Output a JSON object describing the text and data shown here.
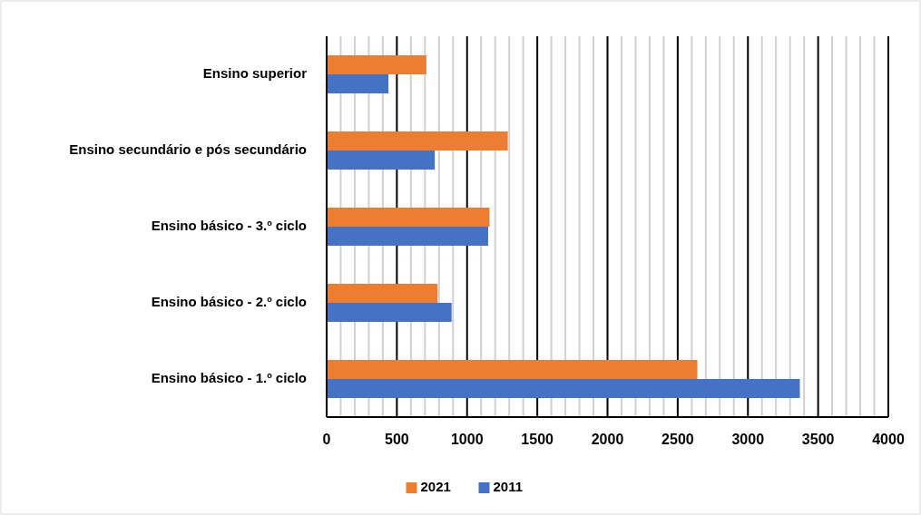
{
  "chart_data": {
    "type": "bar",
    "orientation": "horizontal",
    "categories": [
      "Ensino superior",
      "Ensino secundário e pós secundário",
      "Ensino básico - 3.º ciclo",
      "Ensino básico - 2.º ciclo",
      "Ensino básico - 1.º ciclo"
    ],
    "series": [
      {
        "name": "2021",
        "color": "#ed7d31",
        "values": [
          710,
          1290,
          1160,
          790,
          2640
        ]
      },
      {
        "name": "2011",
        "color": "#4472c4",
        "values": [
          440,
          770,
          1150,
          890,
          3370
        ]
      }
    ],
    "xlim": [
      0,
      4000
    ],
    "xticks": [
      0,
      {
        "value": 100,
        "label": null
      },
      {
        "value": 200,
        "label": null
      },
      {
        "value": 300,
        "label": null
      },
      {
        "value": 400,
        "label": null
      },
      500,
      {
        "value": 600,
        "label": null
      },
      {
        "value": 700,
        "label": null
      },
      {
        "value": 800,
        "label": null
      },
      {
        "value": 900,
        "label": null
      },
      1000,
      {
        "value": 1100,
        "label": null
      },
      {
        "value": 1200,
        "label": null
      },
      {
        "value": 1300,
        "label": null
      },
      {
        "value": 1400,
        "label": null
      },
      1500,
      {
        "value": 1600,
        "label": null
      },
      {
        "value": 1700,
        "label": null
      },
      {
        "value": 1800,
        "label": null
      },
      {
        "value": 1900,
        "label": null
      },
      2000,
      {
        "value": 2100,
        "label": null
      },
      {
        "value": 2200,
        "label": null
      },
      {
        "value": 2300,
        "label": null
      },
      {
        "value": 2400,
        "label": null
      },
      2500,
      {
        "value": 2600,
        "label": null
      },
      {
        "value": 2700,
        "label": null
      },
      {
        "value": 2800,
        "label": null
      },
      {
        "value": 2900,
        "label": null
      },
      3000,
      {
        "value": 3100,
        "label": null
      },
      {
        "value": 3200,
        "label": null
      },
      {
        "value": 3300,
        "label": null
      },
      {
        "value": 3400,
        "label": null
      },
      3500,
      {
        "value": 3600,
        "label": null
      },
      {
        "value": 3700,
        "label": null
      },
      {
        "value": 3800,
        "label": null
      },
      {
        "value": 3900,
        "label": null
      },
      4000
    ],
    "grid": "x",
    "legend": "bottom"
  }
}
